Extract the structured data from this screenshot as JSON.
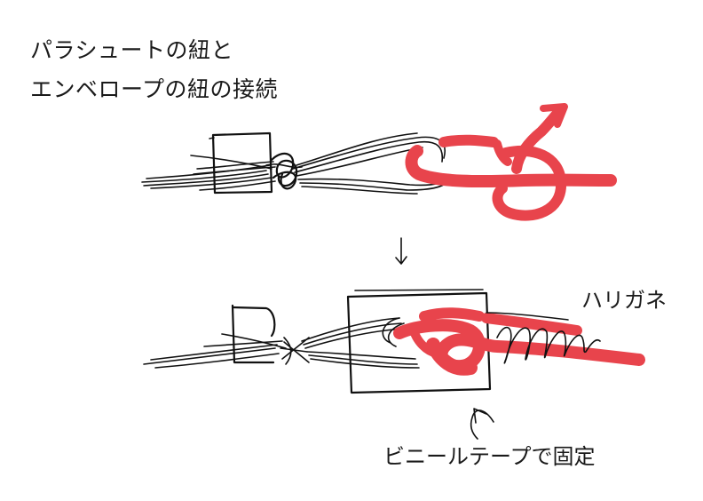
{
  "title": {
    "line1": "パラシュートの紐と",
    "line2": "エンベロープの紐の接続"
  },
  "labels": {
    "wire": "ハリガネ",
    "tape": "ビニールテープで固定"
  },
  "colors": {
    "ink": "#111111",
    "cord_red": "#e8444c"
  }
}
